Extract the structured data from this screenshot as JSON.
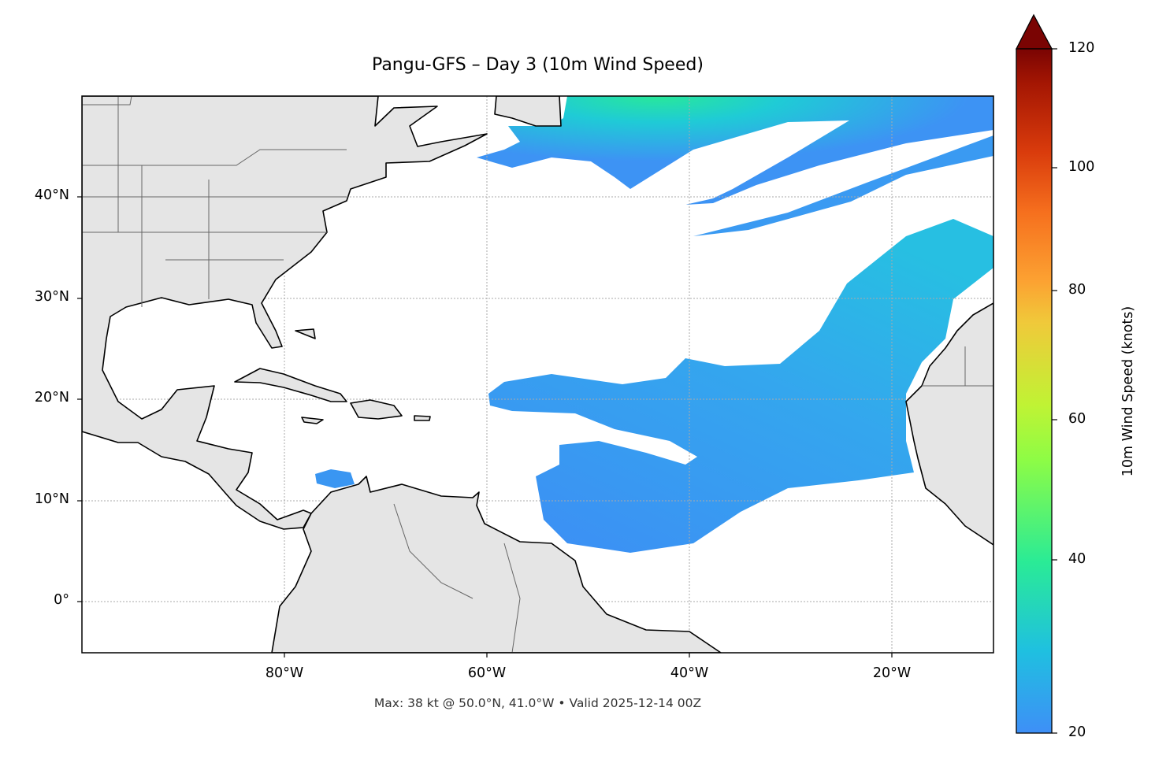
{
  "title": "Pangu-GFS – Day 3 (10m Wind Speed)",
  "footer": "Max: 38 kt @ 50.0°N, 41.0°W • Valid 2025-12-14 00Z",
  "map": {
    "projection": "equirectangular",
    "extent": {
      "lon_min": -100,
      "lon_max": -10,
      "lat_min": -5,
      "lat_max": 50
    },
    "gridlines": true,
    "land_color": "#e5e5e5",
    "coastline_color": "#000000",
    "border_color": "#666666",
    "lat_ticks": [
      {
        "value": 40,
        "label": "40°N"
      },
      {
        "value": 30,
        "label": "30°N"
      },
      {
        "value": 20,
        "label": "20°N"
      },
      {
        "value": 10,
        "label": "10°N"
      },
      {
        "value": 0,
        "label": "0°"
      }
    ],
    "lon_ticks": [
      {
        "value": -80,
        "label": "80°W"
      },
      {
        "value": -60,
        "label": "60°W"
      },
      {
        "value": -40,
        "label": "40°W"
      },
      {
        "value": -20,
        "label": "20°W"
      }
    ]
  },
  "colorbar": {
    "label": "10m Wind Speed (knots)",
    "min": 20,
    "max": 120,
    "extend": "max",
    "ticks": [
      "20",
      "40",
      "60",
      "80",
      "100",
      "120"
    ],
    "colormap": "turbo",
    "low_color": "#3d8ff5",
    "mid_color": "#a4f53a",
    "high_color": "#7a0403"
  }
}
